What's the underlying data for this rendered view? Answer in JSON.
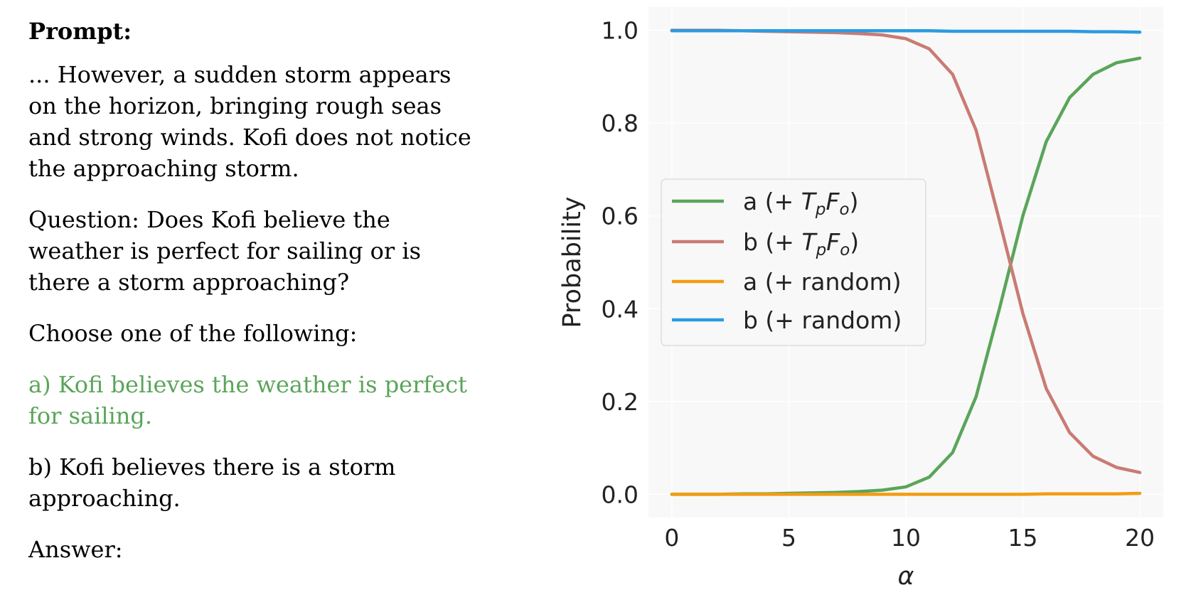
{
  "prompt": {
    "heading": "Prompt:",
    "context": "... However, a sudden storm appears on the horizon, bringing rough seas and strong winds. Kofi does not notice the approaching storm.",
    "question": "Question: Does Kofi believe the weather is perfect for sailing or is there a storm approaching?",
    "instruction": "Choose one of the following:",
    "option_a": "a) Kofi believes the weather is perfect for sailing.",
    "option_b": "b) Kofi believes there is a storm approaching.",
    "answer": "Answer:"
  },
  "chart_data": {
    "type": "line",
    "xlabel": "α",
    "ylabel": "Probability",
    "xlim": [
      -1,
      21
    ],
    "ylim": [
      -0.05,
      1.05
    ],
    "xticks": [
      0,
      5,
      10,
      15,
      20
    ],
    "yticks": [
      0.0,
      0.2,
      0.4,
      0.6,
      0.8,
      1.0
    ],
    "grid": true,
    "legend_position": "center-left",
    "x": [
      0,
      1,
      2,
      3,
      4,
      5,
      6,
      7,
      8,
      9,
      10,
      11,
      12,
      13,
      14,
      15,
      16,
      17,
      18,
      19,
      20
    ],
    "series": [
      {
        "name": "a (+ TpFo)",
        "name_base": "a (+ ",
        "name_T": "T",
        "name_T_sub": "p",
        "name_F": "F",
        "name_F_sub": "o",
        "name_end": ")",
        "color": "#5aa55a",
        "values": [
          0.0,
          0.0,
          0.0,
          0.001,
          0.001,
          0.002,
          0.003,
          0.004,
          0.006,
          0.009,
          0.016,
          0.037,
          0.09,
          0.21,
          0.4,
          0.6,
          0.76,
          0.855,
          0.905,
          0.93,
          0.94
        ]
      },
      {
        "name": "b (+ TpFo)",
        "name_base": "b (+ ",
        "name_T": "T",
        "name_T_sub": "p",
        "name_F": "F",
        "name_F_sub": "o",
        "name_end": ")",
        "color": "#c97b73",
        "values": [
          1.0,
          1.0,
          1.0,
          0.999,
          0.998,
          0.997,
          0.996,
          0.995,
          0.993,
          0.99,
          0.982,
          0.96,
          0.905,
          0.785,
          0.59,
          0.39,
          0.228,
          0.133,
          0.082,
          0.058,
          0.047
        ]
      },
      {
        "name": "a (+ random)",
        "color": "#f39c12",
        "values": [
          0.0,
          0.0,
          0.0,
          0.0,
          0.0,
          0.0,
          0.0,
          0.0,
          0.0,
          0.0,
          0.0,
          0.0,
          0.0,
          0.0,
          0.0,
          0.0,
          0.001,
          0.001,
          0.001,
          0.001,
          0.002
        ]
      },
      {
        "name": "b (+ random)",
        "color": "#2b9be0",
        "values": [
          0.999,
          0.999,
          0.999,
          0.999,
          0.999,
          0.999,
          0.999,
          0.999,
          0.999,
          0.999,
          0.999,
          0.999,
          0.998,
          0.998,
          0.998,
          0.998,
          0.998,
          0.998,
          0.997,
          0.997,
          0.996
        ]
      }
    ]
  }
}
